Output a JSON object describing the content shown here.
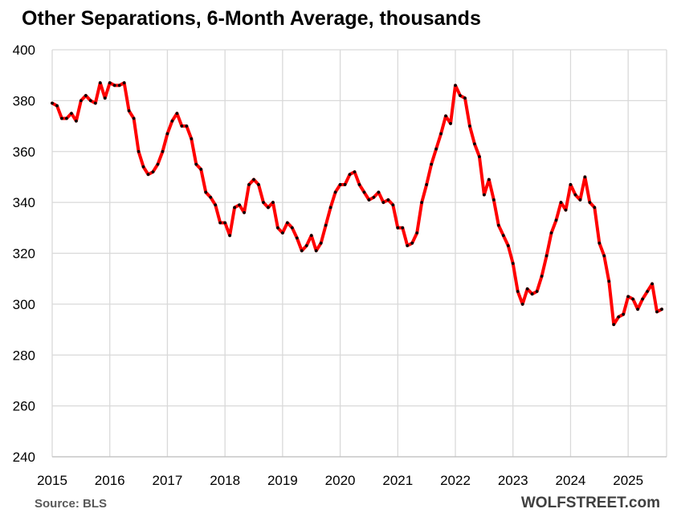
{
  "chart_data": {
    "type": "line",
    "title": "Other Separations, 6-Month Average, thousands",
    "xlabel": "",
    "ylabel": "",
    "xlim": [
      2015.0,
      2025.667
    ],
    "ylim": [
      240,
      400
    ],
    "yticks": [
      240,
      260,
      280,
      300,
      320,
      340,
      360,
      380,
      400
    ],
    "xticks": [
      "2015",
      "2016",
      "2017",
      "2018",
      "2019",
      "2020",
      "2021",
      "2022",
      "2023",
      "2024",
      "2025"
    ],
    "grid": true,
    "legend": "none",
    "series": [
      {
        "start": "2015-01",
        "frequency": "monthly",
        "values": [
          379,
          378,
          373,
          373,
          375,
          372,
          380,
          382,
          380,
          379,
          387,
          381,
          387,
          386,
          386,
          387,
          376,
          373,
          360,
          354,
          351,
          352,
          355,
          360,
          367,
          372,
          375,
          370,
          370,
          365,
          355,
          353,
          344,
          342,
          339,
          332,
          332,
          327,
          338,
          339,
          336,
          347,
          349,
          347,
          340,
          338,
          340,
          330,
          328,
          332,
          330,
          326,
          321,
          323,
          327,
          321,
          324,
          331,
          338,
          344,
          347,
          347,
          351,
          352,
          347,
          344,
          341,
          342,
          344,
          340,
          341,
          339,
          330,
          330,
          323,
          324,
          328,
          340,
          347,
          355,
          361,
          367,
          374,
          371,
          386,
          382,
          381,
          370,
          363,
          358,
          343,
          349,
          341,
          331,
          327,
          323,
          316,
          305,
          300,
          306,
          304,
          305,
          311,
          319,
          328,
          333,
          340,
          337,
          347,
          343,
          341,
          350,
          340,
          338,
          324,
          319,
          309,
          292,
          295,
          296,
          303,
          302,
          298,
          302,
          305,
          308,
          297,
          298
        ]
      }
    ],
    "colors": {
      "line": "#FF0000",
      "markers": "#000000",
      "grid": "#D9D9D9"
    }
  },
  "footer": {
    "source": "Source: BLS",
    "brand": "WOLFSTREET.com"
  }
}
